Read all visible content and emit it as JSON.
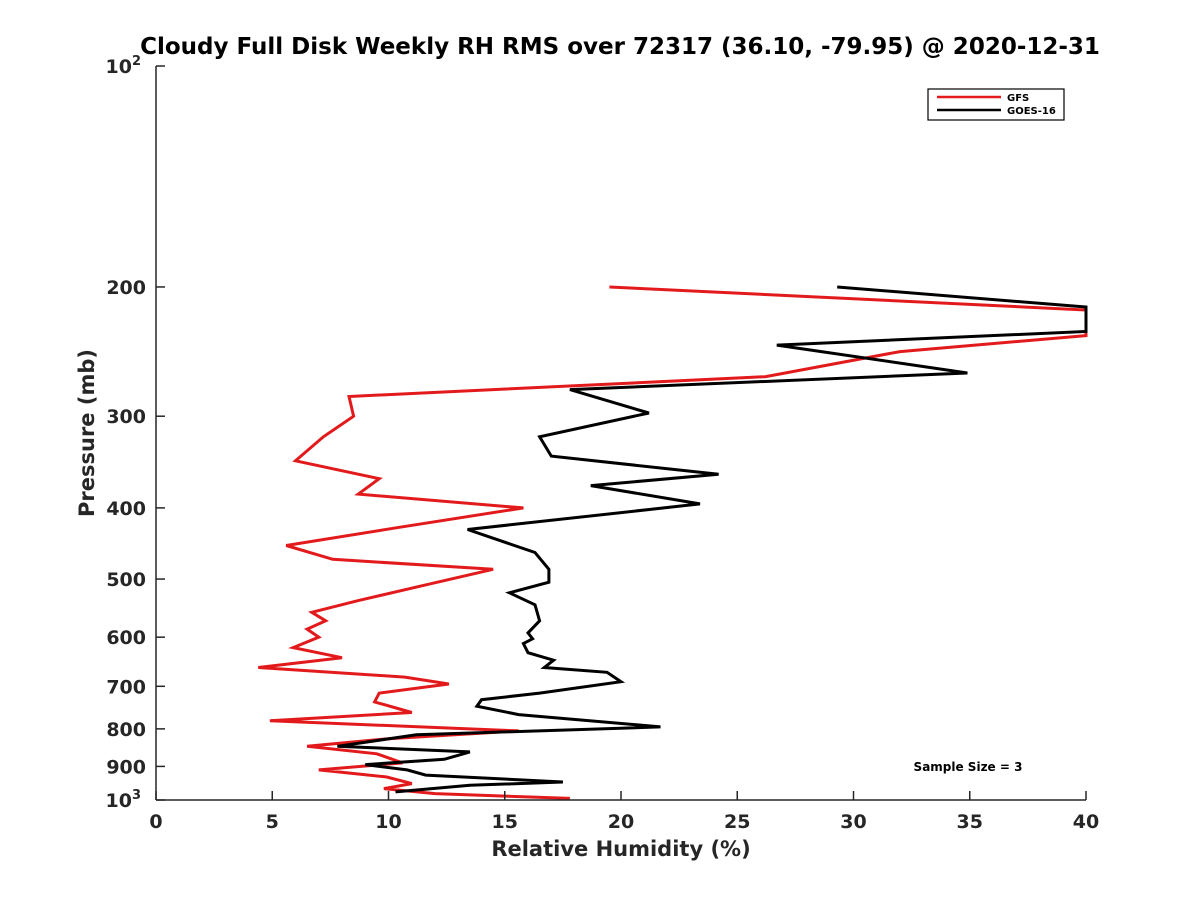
{
  "chart_data": {
    "type": "line",
    "title": "Cloudy Full Disk Weekly RH RMS over 72317 (36.10, -79.95) @ 2020-12-31",
    "xlabel": "Relative Humidity (%)",
    "ylabel": "Pressure (mb)",
    "xlim": [
      0,
      40
    ],
    "ylim": [
      100,
      1000
    ],
    "y_scale": "log",
    "y_reversed": true,
    "grid": false,
    "legend_position": "top-right",
    "x_ticks": [
      "0",
      "5",
      "10",
      "15",
      "20",
      "25",
      "30",
      "35",
      "40"
    ],
    "y_ticks": [
      {
        "value": 100,
        "base": "10",
        "exp": "2"
      },
      {
        "value": 200,
        "label": "200"
      },
      {
        "value": 300,
        "label": "300"
      },
      {
        "value": 400,
        "label": "400"
      },
      {
        "value": 500,
        "label": "500"
      },
      {
        "value": 600,
        "label": "600"
      },
      {
        "value": 700,
        "label": "700"
      },
      {
        "value": 800,
        "label": "800"
      },
      {
        "value": 900,
        "label": "900"
      },
      {
        "value": 1000,
        "base": "10",
        "exp": "3"
      }
    ],
    "annotation": "Sample Size = 3",
    "series": [
      {
        "name": "GFS",
        "color": "#e31a1c",
        "points": [
          [
            19.5,
            200
          ],
          [
            40.0,
            215
          ],
          [
            40.0,
            233
          ],
          [
            32.0,
            245
          ],
          [
            26.2,
            265
          ],
          [
            8.3,
            282
          ],
          [
            8.5,
            300
          ],
          [
            7.2,
            320
          ],
          [
            6.0,
            345
          ],
          [
            9.6,
            365
          ],
          [
            8.7,
            383
          ],
          [
            15.8,
            400
          ],
          [
            10.5,
            425
          ],
          [
            5.6,
            450
          ],
          [
            7.6,
            470
          ],
          [
            14.5,
            485
          ],
          [
            11.5,
            510
          ],
          [
            8.7,
            535
          ],
          [
            6.7,
            555
          ],
          [
            7.3,
            570
          ],
          [
            6.5,
            585
          ],
          [
            7.0,
            600
          ],
          [
            5.9,
            620
          ],
          [
            8.0,
            640
          ],
          [
            4.4,
            660
          ],
          [
            10.7,
            680
          ],
          [
            12.6,
            695
          ],
          [
            9.6,
            715
          ],
          [
            9.4,
            735
          ],
          [
            11.0,
            760
          ],
          [
            4.9,
            780
          ],
          [
            15.6,
            805
          ],
          [
            10.0,
            825
          ],
          [
            6.5,
            845
          ],
          [
            9.5,
            865
          ],
          [
            10.6,
            890
          ],
          [
            7.0,
            910
          ],
          [
            9.9,
            930
          ],
          [
            11.0,
            950
          ],
          [
            9.8,
            965
          ],
          [
            12.0,
            980
          ],
          [
            17.8,
            995
          ]
        ]
      },
      {
        "name": "GOES-16",
        "color": "#000000",
        "points": [
          [
            29.3,
            200
          ],
          [
            40.0,
            213
          ],
          [
            40.0,
            230
          ],
          [
            26.7,
            240
          ],
          [
            34.9,
            262
          ],
          [
            17.8,
            276
          ],
          [
            21.2,
            297
          ],
          [
            16.5,
            320
          ],
          [
            17.0,
            340
          ],
          [
            24.2,
            360
          ],
          [
            18.7,
            373
          ],
          [
            23.4,
            395
          ],
          [
            13.4,
            428
          ],
          [
            16.3,
            460
          ],
          [
            16.9,
            485
          ],
          [
            16.9,
            505
          ],
          [
            15.2,
            522
          ],
          [
            16.3,
            542
          ],
          [
            16.5,
            570
          ],
          [
            16.0,
            592
          ],
          [
            16.2,
            603
          ],
          [
            15.8,
            612
          ],
          [
            16.0,
            630
          ],
          [
            17.1,
            645
          ],
          [
            16.7,
            660
          ],
          [
            19.4,
            670
          ],
          [
            20.0,
            690
          ],
          [
            16.5,
            715
          ],
          [
            14.0,
            730
          ],
          [
            13.8,
            745
          ],
          [
            15.6,
            765
          ],
          [
            21.7,
            795
          ],
          [
            11.2,
            815
          ],
          [
            7.8,
            845
          ],
          [
            13.5,
            860
          ],
          [
            12.4,
            880
          ],
          [
            9.0,
            895
          ],
          [
            10.8,
            910
          ],
          [
            11.6,
            925
          ],
          [
            17.5,
            945
          ],
          [
            13.5,
            955
          ],
          [
            10.3,
            975
          ]
        ]
      }
    ]
  }
}
